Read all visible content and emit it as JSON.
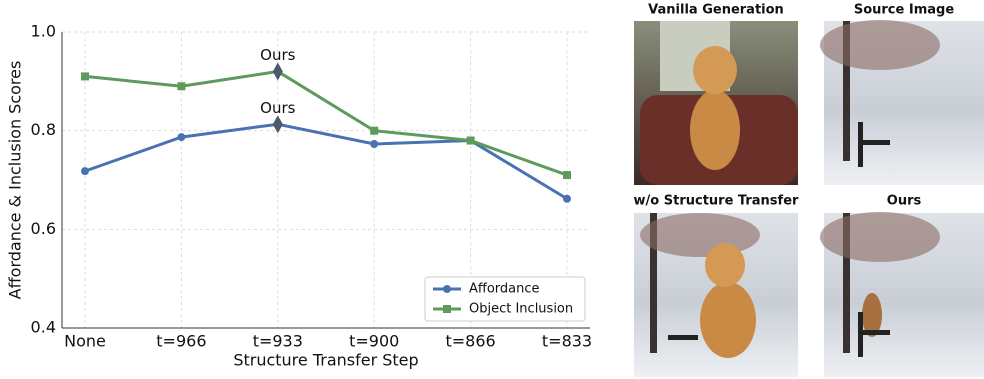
{
  "chart_data": {
    "type": "line",
    "categories": [
      "None",
      "t=966",
      "t=933",
      "t=900",
      "t=866",
      "t=833"
    ],
    "series": [
      {
        "name": "Affordance",
        "color": "#4a72b0",
        "marker": "circle",
        "values": [
          0.718,
          0.787,
          0.813,
          0.773,
          0.78,
          0.662
        ],
        "annotation": {
          "text": "Ours",
          "category": "t=933"
        }
      },
      {
        "name": "Object Inclusion",
        "color": "#5e9a5c",
        "marker": "square",
        "values": [
          0.91,
          0.89,
          0.92,
          0.8,
          0.78,
          0.71
        ],
        "annotation": {
          "text": "Ours",
          "category": "t=933"
        }
      }
    ],
    "ylim": [
      0.4,
      1.0
    ],
    "yticks": [
      {
        "value": 0.4,
        "label": "0.4"
      },
      0.6,
      0.8,
      {
        "value": 1.0,
        "label": "1.0"
      }
    ],
    "xlabel": "Structure Transfer Step",
    "ylabel": "Affordance & Inclusion Scores",
    "grid": true,
    "legend": "lower right"
  },
  "panels": [
    {
      "title": "Vanilla Generation"
    },
    {
      "title": "Source Image"
    },
    {
      "title": "w/o Structure Transfer"
    },
    {
      "title": "Ours"
    }
  ]
}
